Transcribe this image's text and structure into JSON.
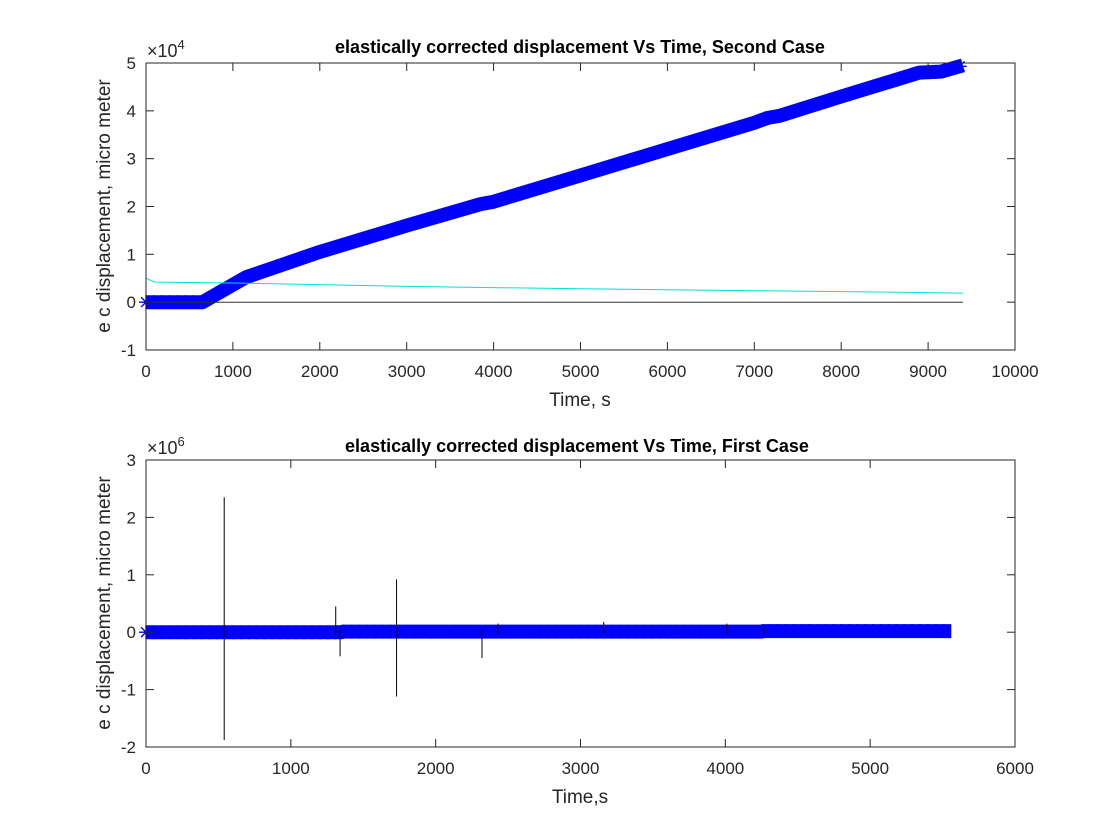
{
  "chart_data": [
    {
      "type": "line",
      "title": "elastically corrected displacement Vs Time, Second Case",
      "xlabel": "Time, s",
      "ylabel": "e c displacement, micro meter",
      "multiplier_base": "10",
      "multiplier_exp": "4",
      "xlim": [
        0,
        10000
      ],
      "ylim": [
        -1,
        5
      ],
      "xticks": [
        0,
        1000,
        2000,
        3000,
        4000,
        5000,
        6000,
        7000,
        8000,
        9000,
        10000
      ],
      "yticks": [
        -1,
        0,
        1,
        2,
        3,
        4,
        5
      ],
      "grid": false,
      "series": [
        {
          "color": "#0000ff",
          "marker": "asterisk",
          "x": [
            0,
            650,
            1150,
            2000,
            3000,
            3850,
            4000,
            5000,
            6000,
            7000,
            7150,
            7300,
            8000,
            8900,
            9150,
            9400
          ],
          "y": [
            0,
            0,
            0.52,
            1.05,
            1.6,
            2.05,
            2.1,
            2.65,
            3.2,
            3.75,
            3.85,
            3.9,
            4.3,
            4.8,
            4.82,
            4.95
          ]
        },
        {
          "color": "#00e0e0",
          "x": [
            0,
            100,
            1000,
            3000,
            5000,
            7000,
            9000,
            9400
          ],
          "y": [
            0.5,
            0.42,
            0.4,
            0.33,
            0.28,
            0.24,
            0.2,
            0.19
          ]
        },
        {
          "color": "#333333",
          "x": [
            0,
            9400
          ],
          "y": [
            0,
            0
          ]
        }
      ]
    },
    {
      "type": "line",
      "title": "elastically corrected displacement Vs Time, First Case",
      "xlabel": "Time,s",
      "ylabel": "e c displacement, micro meter",
      "multiplier_base": "10",
      "multiplier_exp": "6",
      "xlim": [
        0,
        6000
      ],
      "ylim": [
        -2,
        3
      ],
      "xticks": [
        0,
        1000,
        2000,
        3000,
        4000,
        5000,
        6000
      ],
      "yticks": [
        -2,
        -1,
        0,
        1,
        2,
        3
      ],
      "grid": false,
      "series": [
        {
          "color": "#0000ff",
          "marker": "asterisk",
          "x": [
            0,
            1350,
            1360,
            4250,
            4260,
            5560
          ],
          "y": [
            0,
            0,
            0.01,
            0.01,
            0.02,
            0.02
          ]
        },
        {
          "color": "#000000",
          "spikes": [
            {
              "x": 540,
              "min": -1.88,
              "max": 2.35
            },
            {
              "x": 1310,
              "min": -0.05,
              "max": 0.45
            },
            {
              "x": 1340,
              "min": -0.42,
              "max": 0.05
            },
            {
              "x": 1730,
              "min": -1.12,
              "max": 0.92
            },
            {
              "x": 2320,
              "min": -0.45,
              "max": 0.05
            },
            {
              "x": 2430,
              "min": -0.03,
              "max": 0.15
            },
            {
              "x": 3160,
              "min": -0.03,
              "max": 0.18
            },
            {
              "x": 4010,
              "min": -0.03,
              "max": 0.15
            },
            {
              "x": 4270,
              "min": -0.02,
              "max": 0.08
            }
          ]
        }
      ]
    }
  ]
}
